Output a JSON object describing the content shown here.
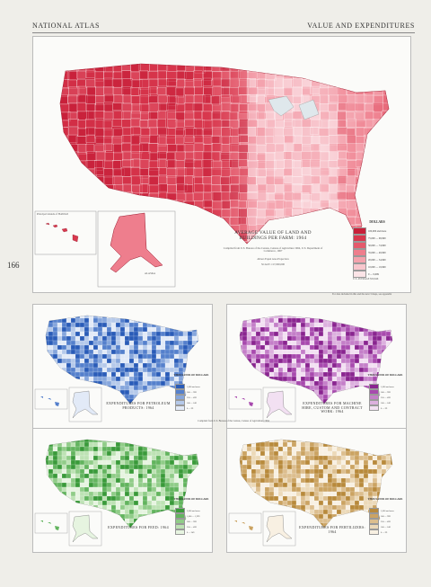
{
  "header": {
    "left": "NATIONAL ATLAS",
    "right": "VALUE AND EXPENDITURES",
    "page_number": "166"
  },
  "main_map": {
    "title": "AVERAGE VALUE OF LAND AND BUILDINGS PER FARM: 1964",
    "credit": "Compiled from U.S. Bureau of the Census, Census of Agriculture 1964, U.S. Department of Commerce, 1967",
    "projection": "Albers Equal Area Projection",
    "scale": "SCALE 1:17,000,000",
    "legend_title": "DOLLARS",
    "legend": [
      {
        "label": "100,000 and more",
        "color": "#c8203a"
      },
      {
        "label": "75,000 — 99,999",
        "color": "#d8384e"
      },
      {
        "label": "50,000 — 74,999",
        "color": "#e45a6c"
      },
      {
        "label": "35,000 — 49,999",
        "color": "#ee7e8d"
      },
      {
        "label": "20,000 — 34,999",
        "color": "#f4a2ad"
      },
      {
        "label": "10,000 — 19,999",
        "color": "#f8c6cd"
      },
      {
        "label": "0 — 9,999",
        "color": "#fce4e7"
      }
    ],
    "legend_note": "U.S. AVERAGE  $50,646",
    "hawaii_label": "Principal islands of HAWAII",
    "alaska_label": "ALASKA",
    "side_note": "For data included in this and the next 3 maps, see appendix"
  },
  "small_maps": [
    {
      "id": "p1",
      "title": "EXPENDITURES FOR PETROLEUM PRODUCTS: 1964",
      "legend_title": "THOUSANDS OF DOLLARS",
      "base": "#2a5cb8",
      "legend": [
        {
          "label": "1,000 and more",
          "color": "#2a5cb8"
        },
        {
          "label": "500 — 999",
          "color": "#5580cc"
        },
        {
          "label": "250 — 499",
          "color": "#86a6dc"
        },
        {
          "label": "100 — 249",
          "color": "#b5c9ea"
        },
        {
          "label": "0 — 99",
          "color": "#e2eaf7"
        }
      ]
    },
    {
      "id": "p2",
      "title": "EXPENDITURES FOR MACHINE HIRE, CUSTOM AND CONTRACT WORK: 1964",
      "legend_title": "THOUSANDS OF DOLLARS",
      "base": "#8a2590",
      "legend": [
        {
          "label": "1,000 and more",
          "color": "#8a2590"
        },
        {
          "label": "500 — 999",
          "color": "#a84aae"
        },
        {
          "label": "250 — 499",
          "color": "#c47fc8"
        },
        {
          "label": "100 — 249",
          "color": "#dcb0de"
        },
        {
          "label": "0 — 99",
          "color": "#f2e0f2"
        }
      ]
    },
    {
      "id": "p3",
      "title": "EXPENDITURES FOR FEED: 1964",
      "legend_title": "THOUSANDS OF DOLLARS",
      "base": "#3a9a3a",
      "legend": [
        {
          "label": "2,000 and more",
          "color": "#3a9a3a"
        },
        {
          "label": "1,000 — 1,999",
          "color": "#62b45e"
        },
        {
          "label": "500 — 999",
          "color": "#90cc88"
        },
        {
          "label": "250 — 499",
          "color": "#bde2b4"
        },
        {
          "label": "0 — 249",
          "color": "#e6f4e0"
        }
      ]
    },
    {
      "id": "p4",
      "title": "EXPENDITURES FOR FERTILIZERS: 1964",
      "legend_title": "THOUSANDS OF DOLLARS",
      "base": "#b88a3c",
      "legend": [
        {
          "label": "1,000 and more",
          "color": "#b88a3c"
        },
        {
          "label": "500 — 999",
          "color": "#cba362"
        },
        {
          "label": "250 — 499",
          "color": "#dcbe8e"
        },
        {
          "label": "100 — 249",
          "color": "#ecd9b8"
        },
        {
          "label": "0 — 99",
          "color": "#f8f0e2"
        }
      ]
    }
  ],
  "center_note": "Compiled from U.S. Bureau of the Census, Census of Agriculture 1964"
}
